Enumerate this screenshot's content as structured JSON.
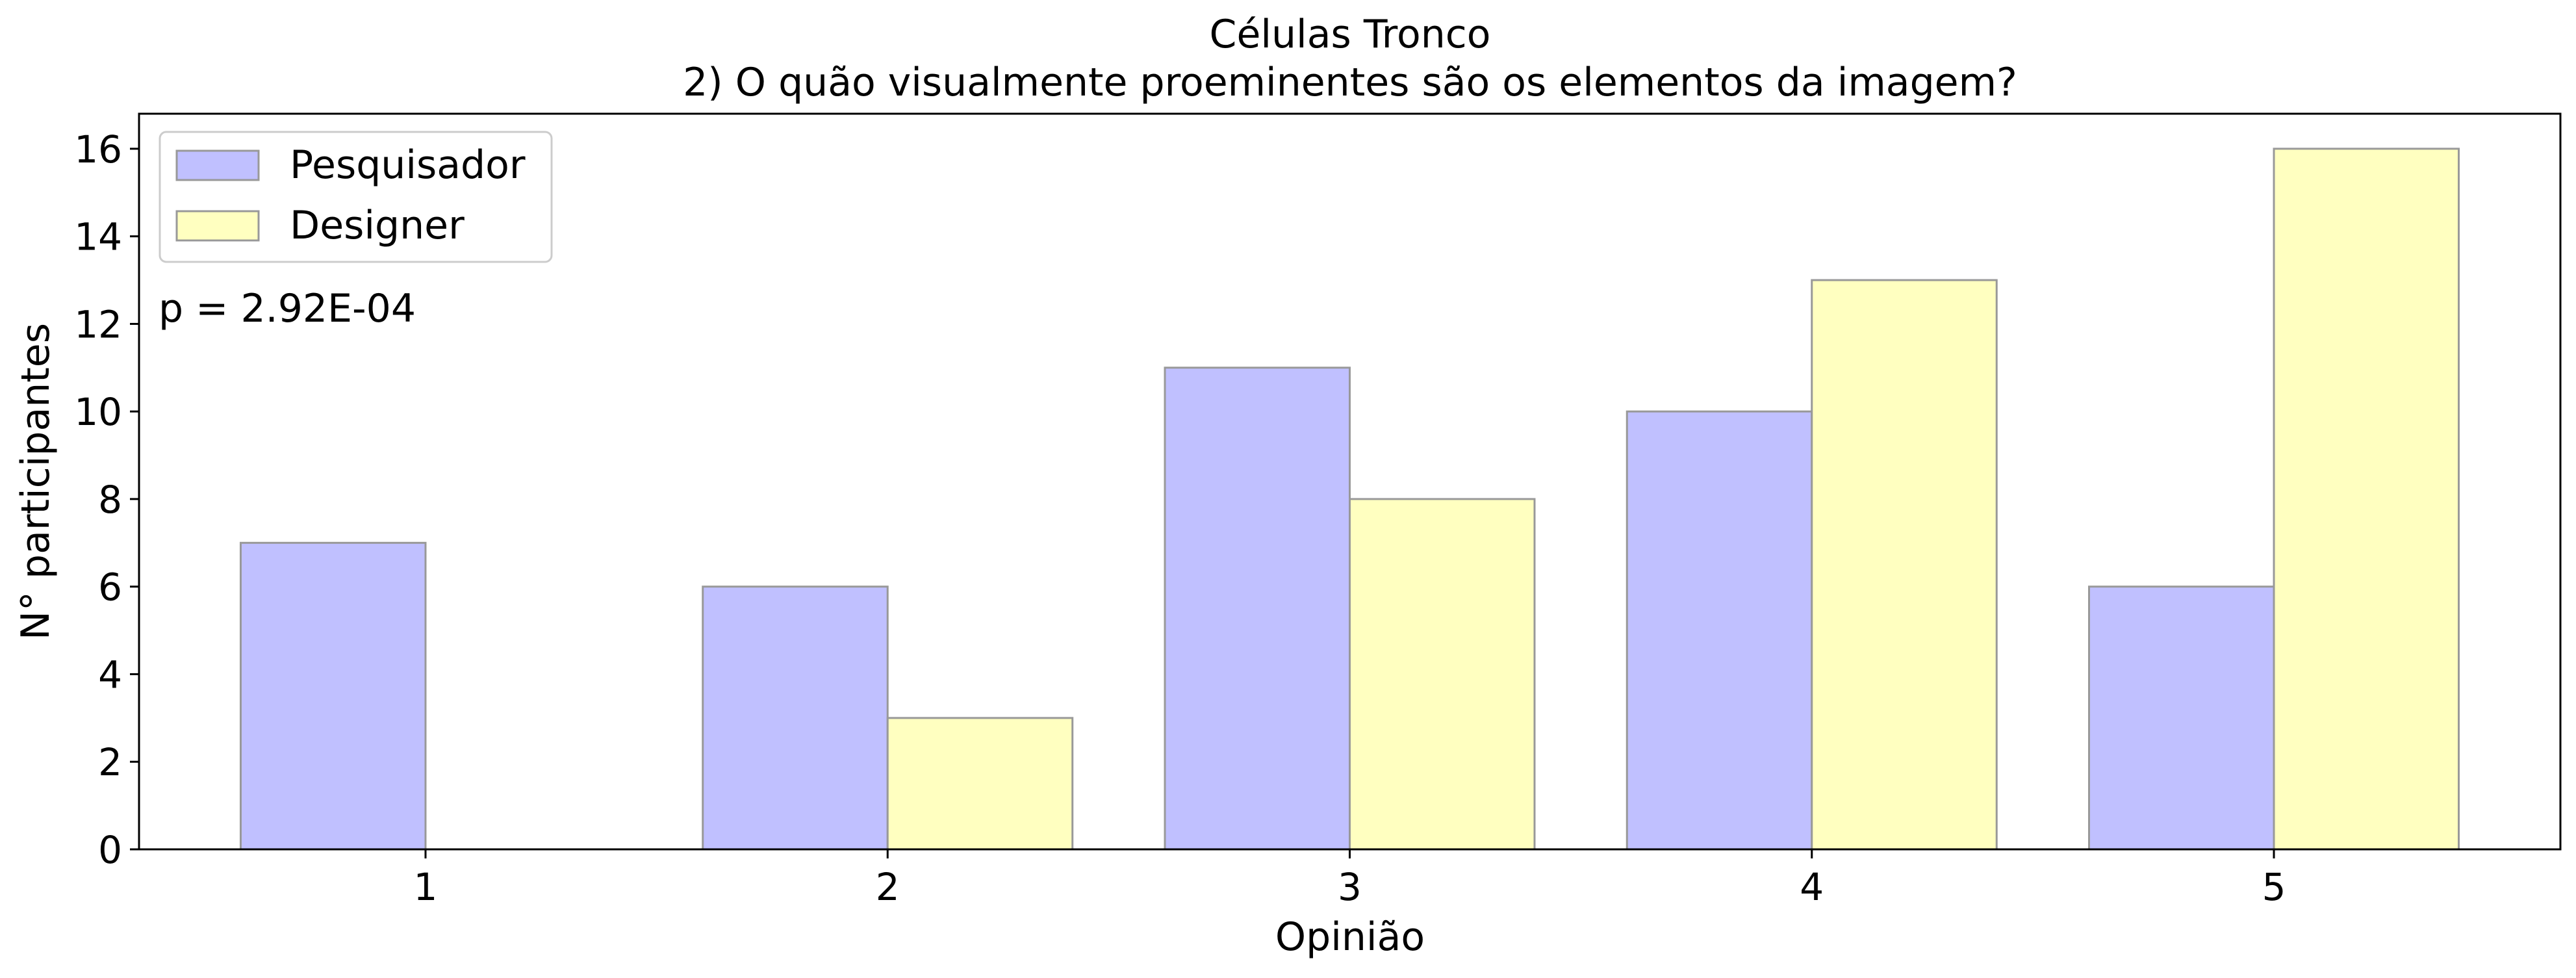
{
  "chart_data": {
    "type": "bar",
    "title": "Células Tronco",
    "subtitle": "2) O quão visualmente proeminentes são os elementos da imagem?",
    "xlabel": "Opinião",
    "ylabel": "N° participantes",
    "categories": [
      "1",
      "2",
      "3",
      "4",
      "5"
    ],
    "series": [
      {
        "name": "Pesquisador",
        "values": [
          7,
          6,
          11,
          10,
          6
        ],
        "color": "#c0c0ff"
      },
      {
        "name": "Designer",
        "values": [
          0,
          3,
          8,
          13,
          16
        ],
        "color": "#ffffc0"
      }
    ],
    "ylim": [
      0,
      16.8
    ],
    "yticks": [
      0,
      2,
      4,
      6,
      8,
      10,
      12,
      14,
      16
    ],
    "grid": false,
    "legend": "top-left",
    "annotation": "p = 2.92E-04",
    "bar_edge_color": "#999999"
  }
}
